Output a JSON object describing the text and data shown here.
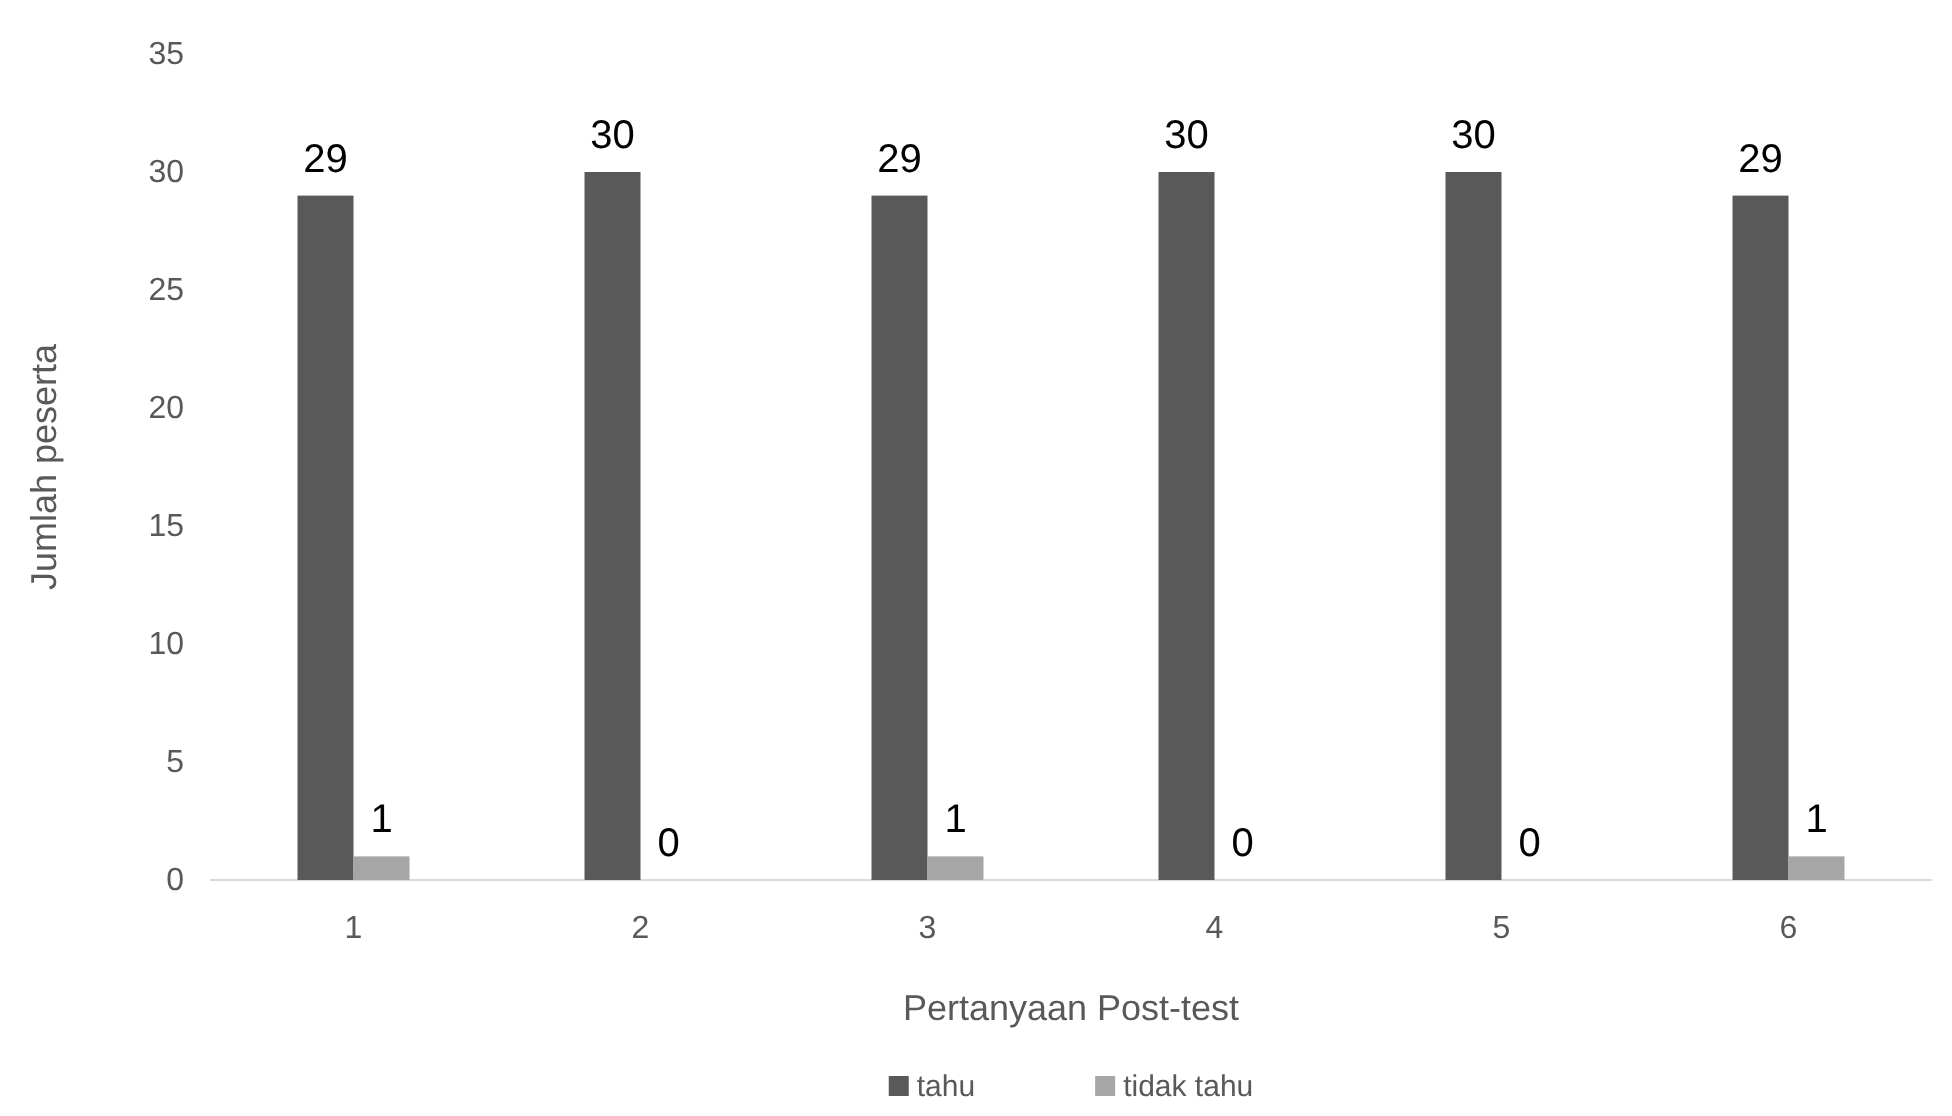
{
  "chart_data": {
    "type": "bar",
    "xlabel": "Pertanyaan Post-test",
    "ylabel": "Jumlah peserta",
    "categories": [
      "1",
      "2",
      "3",
      "4",
      "5",
      "6"
    ],
    "series": [
      {
        "name": "tahu",
        "color": "#595959",
        "values": [
          29,
          30,
          29,
          30,
          30,
          29
        ]
      },
      {
        "name": "tidak tahu",
        "color": "#a6a6a6",
        "values": [
          1,
          0,
          1,
          0,
          0,
          1
        ]
      }
    ],
    "ylim": [
      0,
      35
    ],
    "yticks": [
      0,
      5,
      10,
      15,
      20,
      25,
      30,
      35
    ],
    "grid": false,
    "legend": "bottom",
    "data_labels": true
  }
}
